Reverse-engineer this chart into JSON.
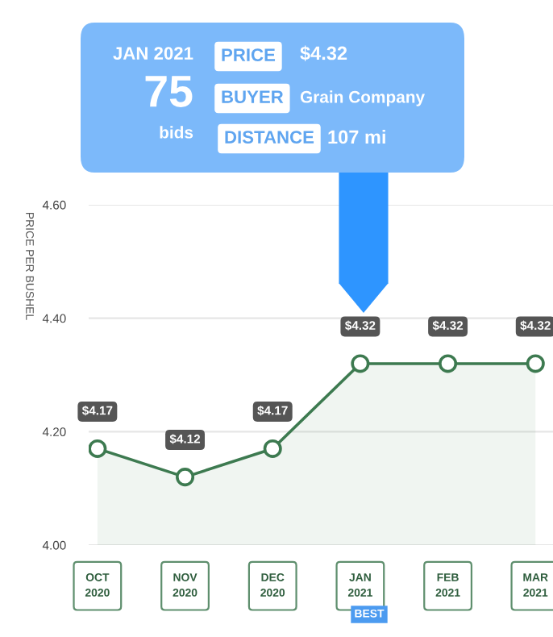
{
  "chart_data": {
    "type": "area",
    "ylabel": "PRICE PER BUSHEL",
    "categories": [
      "OCT\n2020",
      "NOV\n2020",
      "DEC\n2020",
      "JAN\n2021",
      "FEB\n2021",
      "MAR\n2021"
    ],
    "series": [
      {
        "color": "#3d7a50",
        "values": [
          4.17,
          4.12,
          4.17,
          4.32,
          4.32,
          4.32
        ],
        "value_labels": [
          "$4.17",
          "$4.12",
          "$4.17",
          "$4.32",
          "$4.32",
          "$4.32"
        ]
      }
    ],
    "ylim": [
      4.0,
      4.6
    ],
    "yticks": [
      {
        "value": 4.0,
        "label": "4.00"
      },
      {
        "value": 4.2,
        "label": "4.20"
      },
      {
        "value": 4.4,
        "label": "4.40"
      },
      {
        "value": 4.6,
        "label": "4.60"
      }
    ],
    "grid": "y",
    "marker": "circle",
    "line_style": "solid",
    "annotations": [
      "JAN 2021",
      "75",
      "bids",
      "PRICE",
      "$4.32",
      "BUYER",
      "Grain Company",
      "DISTANCE",
      "107 mi",
      "BEST"
    ]
  }
}
